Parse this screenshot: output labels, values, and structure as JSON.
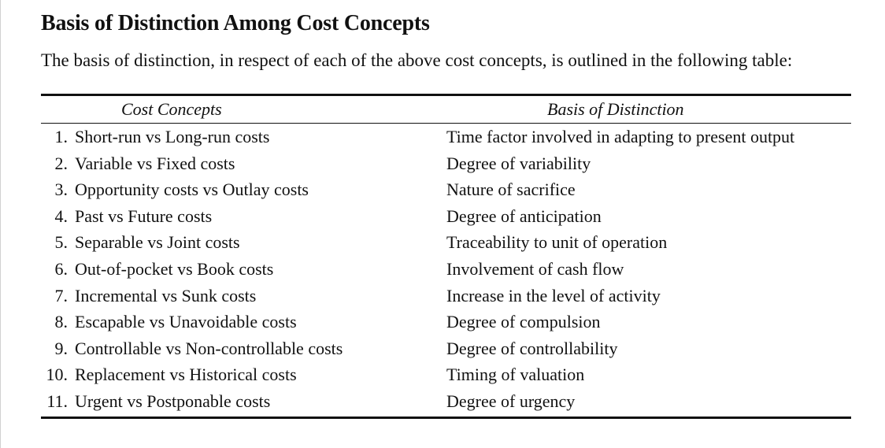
{
  "heading": "Basis of Distinction Among Cost Concepts",
  "intro": "The basis of distinction, in respect of each of the above cost concepts, is outlined in the following table:",
  "table": {
    "headers": {
      "concepts": "Cost Concepts",
      "basis": "Basis of Distinction"
    },
    "rows": [
      {
        "num": "1.",
        "concept": "Short-run vs Long-run costs",
        "basis": "Time factor involved in adapting to present output"
      },
      {
        "num": "2.",
        "concept": "Variable vs Fixed costs",
        "basis": "Degree of variability"
      },
      {
        "num": "3.",
        "concept": "Opportunity costs vs Outlay costs",
        "basis": "Nature of sacrifice"
      },
      {
        "num": "4.",
        "concept": "Past vs Future costs",
        "basis": "Degree of anticipation"
      },
      {
        "num": "5.",
        "concept": "Separable vs Joint costs",
        "basis": "Traceability to unit of operation"
      },
      {
        "num": "6.",
        "concept": "Out-of-pocket vs Book costs",
        "basis": "Involvement of cash flow"
      },
      {
        "num": "7.",
        "concept": "Incremental vs Sunk costs",
        "basis": "Increase in the level of activity"
      },
      {
        "num": "8.",
        "concept": "Escapable vs Unavoidable costs",
        "basis": "Degree of compulsion"
      },
      {
        "num": "9.",
        "concept": "Controllable vs Non-controllable costs",
        "basis": "Degree of controllability"
      },
      {
        "num": "10.",
        "concept": "Replacement vs Historical costs",
        "basis": "Timing of valuation"
      },
      {
        "num": "11.",
        "concept": "Urgent vs Postponable costs",
        "basis": "Degree of urgency"
      }
    ]
  }
}
